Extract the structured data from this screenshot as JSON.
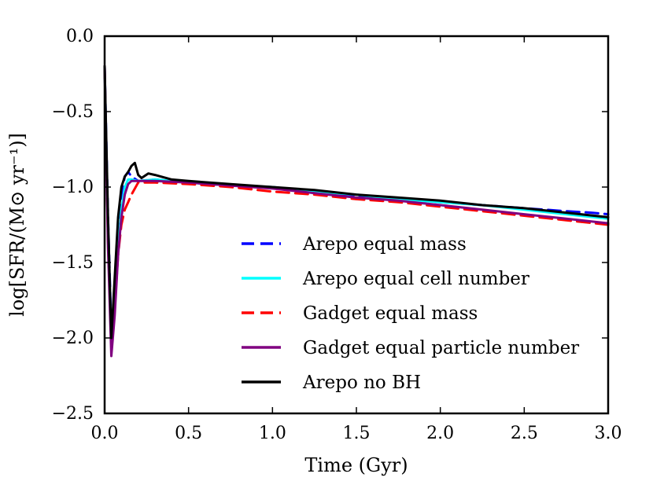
{
  "chart_data": {
    "type": "line",
    "title": "",
    "xlabel": "Time (Gyr)",
    "ylabel": "log[SFR/(M⊙ yr⁻¹)]",
    "xlim": [
      0.0,
      3.0
    ],
    "ylim": [
      -2.5,
      0.0
    ],
    "xticks": [
      "0.0",
      "0.5",
      "1.0",
      "1.5",
      "2.0",
      "2.5",
      "3.0"
    ],
    "yticks": [
      "0.0",
      "−0.5",
      "−1.0",
      "−1.5",
      "−2.0",
      "−2.5"
    ],
    "grid": false,
    "legend_position": "lower-right",
    "series": [
      {
        "name": "Arepo equal mass",
        "color": "#0000ff",
        "style": "dashed",
        "x": [
          0.0,
          0.02,
          0.04,
          0.06,
          0.08,
          0.1,
          0.12,
          0.14,
          0.16,
          0.2,
          0.3,
          0.5,
          0.75,
          1.0,
          1.25,
          1.5,
          1.75,
          2.0,
          2.25,
          2.5,
          2.75,
          2.9,
          3.0
        ],
        "y": [
          -0.2,
          -1.2,
          -1.95,
          -1.7,
          -1.3,
          -1.05,
          -0.93,
          -0.9,
          -0.93,
          -0.96,
          -0.95,
          -0.97,
          -0.99,
          -1.0,
          -1.03,
          -1.06,
          -1.08,
          -1.1,
          -1.12,
          -1.14,
          -1.16,
          -1.17,
          -1.18
        ]
      },
      {
        "name": "Arepo equal cell number",
        "color": "#00ffff",
        "style": "solid",
        "x": [
          0.0,
          0.02,
          0.04,
          0.06,
          0.08,
          0.1,
          0.12,
          0.14,
          0.16,
          0.2,
          0.3,
          0.5,
          0.75,
          1.0,
          1.25,
          1.5,
          1.75,
          2.0,
          2.25,
          2.5,
          2.75,
          3.0
        ],
        "y": [
          -0.2,
          -1.3,
          -2.0,
          -1.75,
          -1.4,
          -1.15,
          -1.0,
          -0.95,
          -0.95,
          -0.96,
          -0.95,
          -0.97,
          -0.99,
          -1.0,
          -1.03,
          -1.05,
          -1.08,
          -1.1,
          -1.12,
          -1.15,
          -1.18,
          -1.21
        ]
      },
      {
        "name": "Gadget equal mass",
        "color": "#ff0000",
        "style": "dashed",
        "x": [
          0.0,
          0.02,
          0.04,
          0.06,
          0.08,
          0.1,
          0.12,
          0.14,
          0.16,
          0.2,
          0.3,
          0.5,
          0.75,
          1.0,
          1.25,
          1.5,
          1.75,
          2.0,
          2.25,
          2.5,
          2.75,
          3.0
        ],
        "y": [
          -0.2,
          -1.35,
          -2.05,
          -1.8,
          -1.45,
          -1.25,
          -1.15,
          -1.1,
          -1.05,
          -0.97,
          -0.97,
          -0.98,
          -1.0,
          -1.03,
          -1.05,
          -1.08,
          -1.1,
          -1.13,
          -1.16,
          -1.19,
          -1.22,
          -1.25
        ]
      },
      {
        "name": "Gadget equal particle number",
        "color": "#800080",
        "style": "solid",
        "x": [
          0.0,
          0.02,
          0.04,
          0.06,
          0.08,
          0.1,
          0.12,
          0.14,
          0.16,
          0.2,
          0.3,
          0.5,
          0.75,
          1.0,
          1.25,
          1.5,
          1.75,
          2.0,
          2.25,
          2.5,
          2.75,
          3.0
        ],
        "y": [
          -0.2,
          -1.4,
          -2.12,
          -1.85,
          -1.45,
          -1.2,
          -1.05,
          -0.98,
          -0.96,
          -0.96,
          -0.96,
          -0.97,
          -0.99,
          -1.01,
          -1.04,
          -1.07,
          -1.09,
          -1.12,
          -1.15,
          -1.18,
          -1.21,
          -1.24
        ]
      },
      {
        "name": "Arepo no BH",
        "color": "#000000",
        "style": "solid",
        "x": [
          0.0,
          0.02,
          0.04,
          0.06,
          0.08,
          0.1,
          0.12,
          0.14,
          0.16,
          0.18,
          0.2,
          0.22,
          0.26,
          0.3,
          0.4,
          0.5,
          0.75,
          1.0,
          1.25,
          1.5,
          1.75,
          2.0,
          2.25,
          2.5,
          2.75,
          3.0
        ],
        "y": [
          -0.2,
          -1.2,
          -2.0,
          -1.6,
          -1.2,
          -1.0,
          -0.93,
          -0.9,
          -0.86,
          -0.84,
          -0.92,
          -0.94,
          -0.91,
          -0.92,
          -0.95,
          -0.96,
          -0.98,
          -1.0,
          -1.02,
          -1.05,
          -1.07,
          -1.09,
          -1.12,
          -1.14,
          -1.17,
          -1.2
        ]
      }
    ]
  }
}
